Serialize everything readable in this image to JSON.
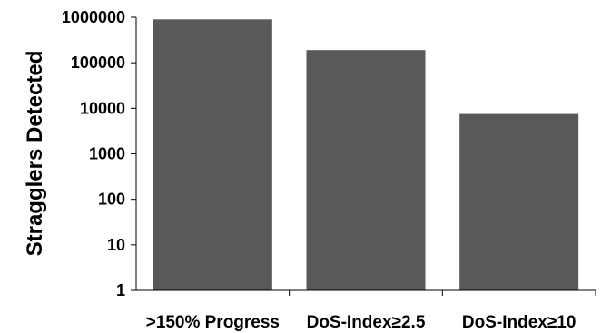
{
  "chart_data": {
    "type": "bar",
    "title": "",
    "xlabel": "",
    "ylabel": "Stragglers Detected",
    "yscale": "log",
    "ylim": [
      1,
      1000000
    ],
    "yticks": [
      "1",
      "10",
      "100",
      "1000",
      "10000",
      "100000",
      "1000000"
    ],
    "grid": false,
    "categories": [
      ">150% Progress",
      "DoS-Index≥2.5",
      "DoS-Index≥10"
    ],
    "values": [
      900000,
      190000,
      7500
    ],
    "bar_color": "#595959"
  }
}
